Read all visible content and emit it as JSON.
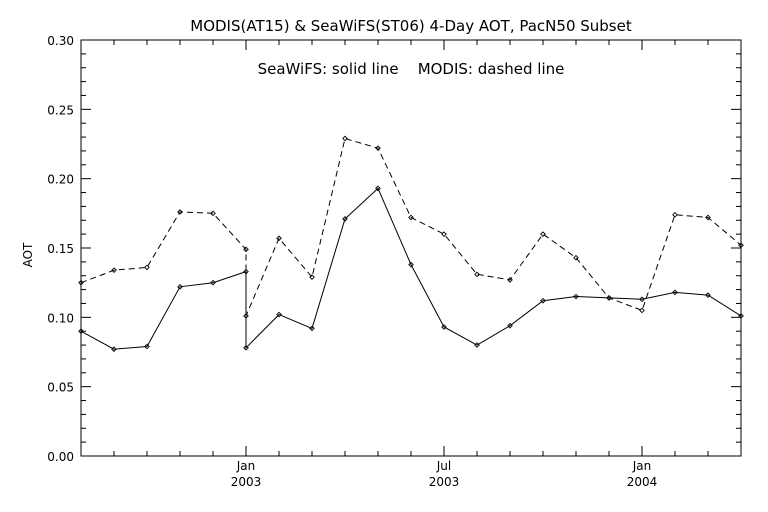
{
  "chart_data": {
    "type": "line",
    "title": "MODIS(AT15) & SeaWiFS(ST06) 4-Day AOT, PacN50 Subset",
    "annotation": "SeaWiFS: solid line    MODIS: dashed line",
    "xlabel": "",
    "ylabel": "AOT",
    "ylim": [
      0.0,
      0.3
    ],
    "yticks": [
      "0.00",
      "0.05",
      "0.10",
      "0.15",
      "0.20",
      "0.25",
      "0.30"
    ],
    "x_axis": {
      "unit": "month",
      "range": [
        "2002-08",
        "2004-04"
      ],
      "labeled_ticks": [
        {
          "date": "2003-01",
          "month": "Jan",
          "year": "2003"
        },
        {
          "date": "2003-07",
          "month": "Jul",
          "year": "2003"
        },
        {
          "date": "2004-01",
          "month": "Jan",
          "year": "2004"
        }
      ]
    },
    "grid": false,
    "legend": "none",
    "series": [
      {
        "name": "SeaWiFS",
        "style": "solid",
        "points": [
          [
            "2002-08",
            0.09
          ],
          [
            "2002-09",
            0.077
          ],
          [
            "2002-10",
            0.079
          ],
          [
            "2002-11",
            0.122
          ],
          [
            "2002-12",
            0.125
          ],
          [
            "2003-01",
            0.133
          ],
          [
            "2003-01",
            0.078
          ],
          [
            "2003-02",
            0.102
          ],
          [
            "2003-03",
            0.092
          ],
          [
            "2003-04",
            0.171
          ],
          [
            "2003-05",
            0.193
          ],
          [
            "2003-06",
            0.138
          ],
          [
            "2003-07",
            0.093
          ],
          [
            "2003-08",
            0.08
          ],
          [
            "2003-09",
            0.094
          ],
          [
            "2003-10",
            0.112
          ],
          [
            "2003-11",
            0.115
          ],
          [
            "2003-12",
            0.114
          ],
          [
            "2004-01",
            0.113
          ],
          [
            "2004-02",
            0.118
          ],
          [
            "2004-03",
            0.116
          ],
          [
            "2004-04",
            0.101
          ]
        ]
      },
      {
        "name": "MODIS",
        "style": "dashed",
        "points": [
          [
            "2002-08",
            0.125
          ],
          [
            "2002-09",
            0.134
          ],
          [
            "2002-10",
            0.136
          ],
          [
            "2002-11",
            0.176
          ],
          [
            "2002-12",
            0.175
          ],
          [
            "2003-01",
            0.149
          ],
          [
            "2003-01",
            0.101
          ],
          [
            "2003-02",
            0.157
          ],
          [
            "2003-03",
            0.129
          ],
          [
            "2003-04",
            0.229
          ],
          [
            "2003-05",
            0.222
          ],
          [
            "2003-06",
            0.172
          ],
          [
            "2003-07",
            0.16
          ],
          [
            "2003-08",
            0.131
          ],
          [
            "2003-09",
            0.127
          ],
          [
            "2003-10",
            0.16
          ],
          [
            "2003-11",
            0.143
          ],
          [
            "2003-12",
            0.114
          ],
          [
            "2004-01",
            0.105
          ],
          [
            "2004-02",
            0.174
          ],
          [
            "2004-03",
            0.172
          ],
          [
            "2004-04",
            0.152
          ]
        ]
      }
    ]
  }
}
